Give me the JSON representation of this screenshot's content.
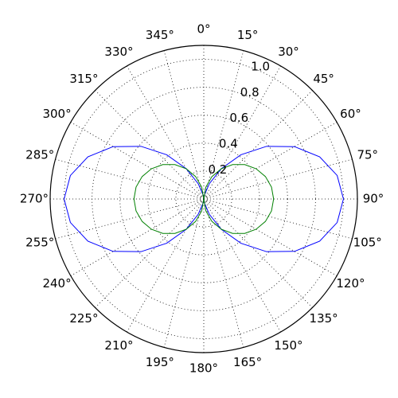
{
  "chart_data": {
    "type": "polar",
    "theta": [
      0,
      10,
      20,
      30,
      40,
      50,
      60,
      70,
      80,
      90,
      100,
      110,
      120,
      130,
      140,
      150,
      160,
      170,
      180,
      190,
      200,
      210,
      220,
      230,
      240,
      250,
      260,
      270,
      280,
      290,
      300,
      310,
      320,
      330,
      340,
      350,
      360
    ],
    "series": [
      {
        "color": "#0000ff",
        "values": [
          0,
          0.0302,
          0.117,
          0.25,
          0.4132,
          0.5868,
          0.75,
          0.883,
          0.9698,
          1,
          0.9698,
          0.883,
          0.75,
          0.5868,
          0.4132,
          0.25,
          0.117,
          0.0302,
          0,
          0.0302,
          0.117,
          0.25,
          0.4132,
          0.5868,
          0.75,
          0.883,
          0.9698,
          1,
          0.9698,
          0.883,
          0.75,
          0.5868,
          0.4132,
          0.25,
          0.117,
          0.0302,
          0
        ]
      },
      {
        "color": "#008000",
        "values": [
          0,
          0.0868,
          0.171,
          0.25,
          0.3214,
          0.383,
          0.433,
          0.4698,
          0.4924,
          0.5,
          0.4924,
          0.4698,
          0.433,
          0.383,
          0.3214,
          0.25,
          0.171,
          0.0868,
          0,
          0.0868,
          0.171,
          0.25,
          0.3214,
          0.383,
          0.433,
          0.4698,
          0.4924,
          0.5,
          0.4924,
          0.4698,
          0.433,
          0.383,
          0.3214,
          0.25,
          0.171,
          0.0868,
          0
        ]
      }
    ],
    "rlim": [
      0,
      1.1
    ],
    "rticks": [
      0.2,
      0.4,
      0.6,
      0.8,
      {
        "value": 1,
        "label": "1.0"
      }
    ],
    "thetaticks": [
      {
        "value": 0,
        "label": "0°"
      },
      {
        "value": 15,
        "label": "15°"
      },
      {
        "value": 30,
        "label": "30°"
      },
      {
        "value": 45,
        "label": "45°"
      },
      {
        "value": 60,
        "label": "60°"
      },
      {
        "value": 75,
        "label": "75°"
      },
      {
        "value": 90,
        "label": "90°"
      },
      {
        "value": 105,
        "label": "105°"
      },
      {
        "value": 120,
        "label": "120°"
      },
      {
        "value": 135,
        "label": "135°"
      },
      {
        "value": 150,
        "label": "150°"
      },
      {
        "value": 165,
        "label": "165°"
      },
      {
        "value": 180,
        "label": "180°"
      },
      {
        "value": 195,
        "label": "195°"
      },
      {
        "value": 210,
        "label": "210°"
      },
      {
        "value": 225,
        "label": "225°"
      },
      {
        "value": 240,
        "label": "240°"
      },
      {
        "value": 255,
        "label": "255°"
      },
      {
        "value": 270,
        "label": "270°"
      },
      {
        "value": 285,
        "label": "285°"
      },
      {
        "value": 300,
        "label": "300°"
      },
      {
        "value": 315,
        "label": "315°"
      },
      {
        "value": 330,
        "label": "330°"
      },
      {
        "value": 345,
        "label": "345°"
      }
    ],
    "grid": true
  }
}
